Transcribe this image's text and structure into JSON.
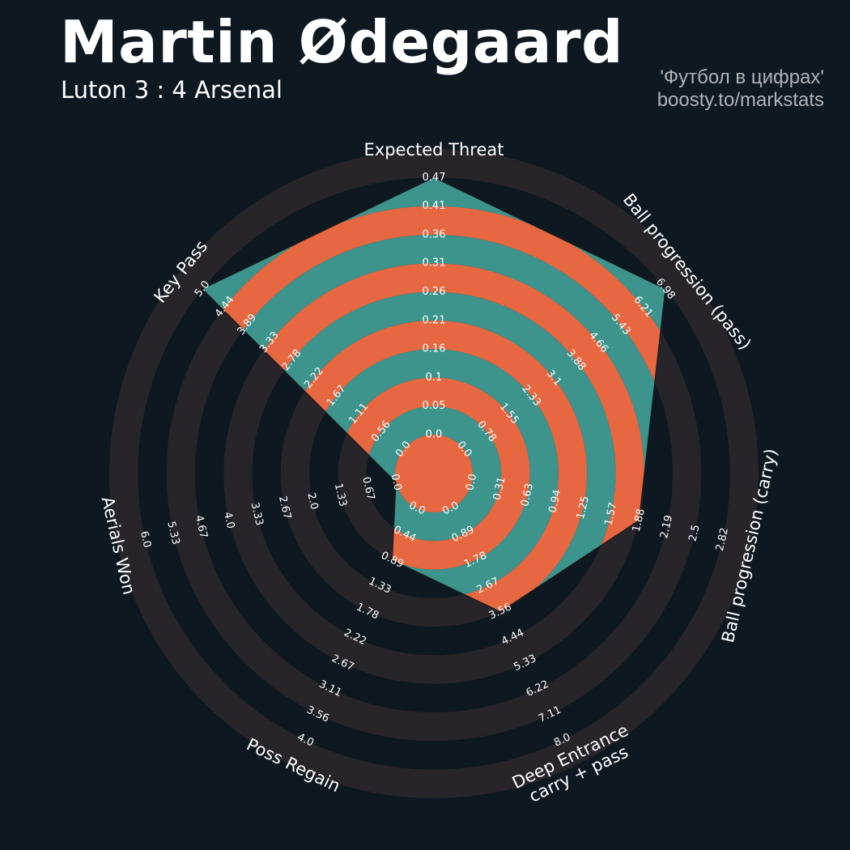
{
  "header": {
    "player_name": "Martin Ødegaard",
    "match": "Luton 3 : 4 Arsenal",
    "credit_line1": "'Футбол в цифрах'",
    "credit_line2": "boosty.to/markstats"
  },
  "colors": {
    "background": "#0e1820",
    "ring_dark": "#27242a",
    "fill_teal": "#3c948d",
    "fill_orange": "#e76741",
    "text": "#ffffff"
  },
  "chart_data": {
    "type": "radar",
    "title": "Martin Ødegaard",
    "subtitle": "Luton 3 : 4 Arsenal",
    "params": [
      {
        "label": "Expected Threat",
        "value": 0.47,
        "range": [
          0.0,
          0.47
        ],
        "ticks": [
          "0.0",
          "0.05",
          "0.1",
          "0.16",
          "0.21",
          "0.26",
          "0.31",
          "0.36",
          "0.41",
          "0.47"
        ]
      },
      {
        "label": "Ball progression (pass)",
        "value": 6.98,
        "range": [
          0.0,
          6.98
        ],
        "ticks": [
          "0.0",
          "0.78",
          "1.55",
          "2.33",
          "3.1",
          "3.88",
          "4.66",
          "5.43",
          "6.21",
          "6.98"
        ]
      },
      {
        "label": "Ball progression (carry)",
        "value": 1.88,
        "range": [
          0.0,
          2.82
        ],
        "ticks": [
          "0.0",
          "0.31",
          "0.63",
          "0.94",
          "1.25",
          "1.57",
          "1.88",
          "2.19",
          "2.5",
          "2.82"
        ]
      },
      {
        "label": "Deep Entrance\ncarry + pass",
        "value": 3.56,
        "range": [
          0.0,
          8.0
        ],
        "ticks": [
          "0.0",
          "0.89",
          "1.78",
          "2.67",
          "3.56",
          "4.44",
          "5.33",
          "6.22",
          "7.11",
          "8.0"
        ]
      },
      {
        "label": "Poss Regain",
        "value": 0.89,
        "range": [
          0.0,
          4.0
        ],
        "ticks": [
          "0.0",
          "0.44",
          "0.89",
          "1.33",
          "1.78",
          "2.22",
          "2.67",
          "3.11",
          "3.56",
          "4.0"
        ]
      },
      {
        "label": "Aerials Won",
        "value": 0.0,
        "range": [
          0.0,
          6.0
        ],
        "ticks": [
          "0.0",
          "0.67",
          "1.33",
          "2.0",
          "2.67",
          "3.33",
          "4.0",
          "4.67",
          "5.33",
          "6.0"
        ]
      },
      {
        "label": "Key Pass",
        "value": 5.0,
        "range": [
          0.0,
          5.0
        ],
        "ticks": [
          "0.0",
          "0.56",
          "1.11",
          "1.67",
          "2.22",
          "2.78",
          "3.33",
          "3.89",
          "4.44",
          "5.0"
        ]
      }
    ],
    "rings": 9,
    "grid": true
  }
}
